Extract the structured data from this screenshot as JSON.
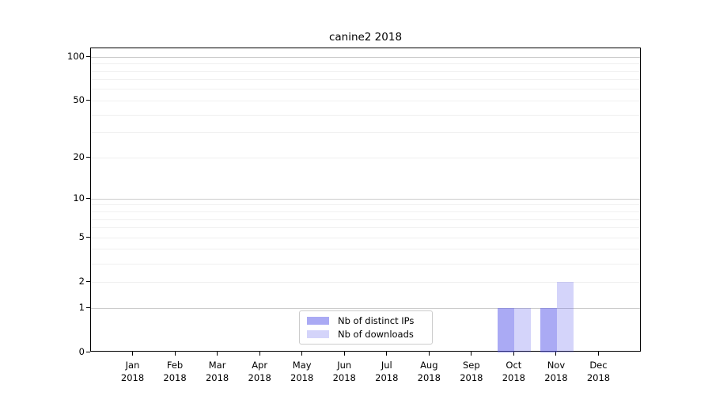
{
  "chart_data": {
    "type": "bar",
    "title": "canine2 2018",
    "x_tick_months": [
      "Jan",
      "Feb",
      "Mar",
      "Apr",
      "May",
      "Jun",
      "Jul",
      "Aug",
      "Sep",
      "Oct",
      "Nov",
      "Dec"
    ],
    "x_tick_year": "2018",
    "series": [
      {
        "name": "Nb of distinct IPs",
        "color": "rgba(85,85,234,0.5)",
        "values": [
          0,
          0,
          0,
          0,
          0,
          0,
          0,
          0,
          0,
          1,
          1,
          0
        ]
      },
      {
        "name": "Nb of downloads",
        "color": "rgba(85,85,234,0.25)",
        "values": [
          0,
          0,
          0,
          0,
          0,
          0,
          0,
          0,
          0,
          1,
          2,
          0
        ]
      }
    ],
    "yscale": "log1p",
    "ylim": [
      0,
      115
    ],
    "y_ticks": [
      0,
      1,
      2,
      5,
      10,
      20,
      50,
      100
    ],
    "y_major_gridlines": [
      1,
      10,
      100
    ],
    "y_minor_gridlines": [
      2,
      3,
      4,
      5,
      6,
      7,
      8,
      9,
      20,
      30,
      40,
      50,
      60,
      70,
      80,
      90
    ],
    "grid": true,
    "legend_position": "lower center"
  },
  "colors": {
    "major_grid": "#cccccc",
    "minor_grid": "#f0f0f0",
    "axis": "#000000",
    "text": "#000000",
    "background": "#ffffff",
    "legend_border": "#cccccc"
  }
}
